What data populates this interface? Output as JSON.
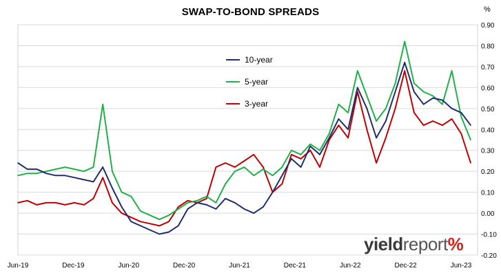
{
  "chart_data": {
    "type": "line",
    "title": "SWAP-TO-BOND SPREADS",
    "unit_label": "%",
    "x_tick_labels": [
      "Jun-19",
      "Dec-19",
      "Jun-20",
      "Dec-20",
      "Jun-21",
      "Dec-21",
      "Jun-22",
      "Dec-22",
      "Jun-23"
    ],
    "y_tick_labels": [
      "-0.20",
      "-0.10",
      "0.00",
      "0.10",
      "0.20",
      "0.30",
      "0.40",
      "0.50",
      "0.60",
      "0.70",
      "0.80",
      "0.90"
    ],
    "ylim": [
      -0.2,
      0.9
    ],
    "y_axis_side": "right",
    "grid": {
      "horizontal": true,
      "vertical": false
    },
    "legend_position": "upper-left inside",
    "colors": {
      "10-year": "#1f2d6b",
      "5-year": "#1fb04a",
      "3-year": "#c00000"
    },
    "series": [
      {
        "name": "10-year",
        "dates": [
          "Jun-19",
          "Jul-19",
          "Aug-19",
          "Sep-19",
          "Oct-19",
          "Nov-19",
          "Dec-19",
          "Jan-20",
          "Feb-20",
          "Mar-20",
          "Apr-20",
          "May-20",
          "Jun-20",
          "Jul-20",
          "Aug-20",
          "Sep-20",
          "Oct-20",
          "Nov-20",
          "Dec-20",
          "Jan-21",
          "Feb-21",
          "Mar-21",
          "Apr-21",
          "May-21",
          "Jun-21",
          "Jul-21",
          "Aug-21",
          "Sep-21",
          "Oct-21",
          "Nov-21",
          "Dec-21",
          "Jan-22",
          "Feb-22",
          "Mar-22",
          "Apr-22",
          "May-22",
          "Jun-22",
          "Jul-22",
          "Aug-22",
          "Sep-22",
          "Oct-22",
          "Nov-22",
          "Dec-22",
          "Jan-23",
          "Feb-23",
          "Mar-23",
          "Apr-23",
          "May-23",
          "Jun-23"
        ],
        "values": [
          0.24,
          0.21,
          0.21,
          0.19,
          0.18,
          0.18,
          0.17,
          0.16,
          0.15,
          0.22,
          0.12,
          0.03,
          -0.04,
          -0.06,
          -0.08,
          -0.1,
          -0.09,
          -0.06,
          0.02,
          0.05,
          0.04,
          0.02,
          0.07,
          0.05,
          0.02,
          0.0,
          0.03,
          0.1,
          0.18,
          0.26,
          0.22,
          0.32,
          0.28,
          0.36,
          0.45,
          0.4,
          0.6,
          0.5,
          0.36,
          0.44,
          0.58,
          0.72,
          0.58,
          0.52,
          0.55,
          0.54,
          0.5,
          0.48,
          0.42
        ]
      },
      {
        "name": "5-year",
        "dates": [
          "Jun-19",
          "Jul-19",
          "Aug-19",
          "Sep-19",
          "Oct-19",
          "Nov-19",
          "Dec-19",
          "Jan-20",
          "Feb-20",
          "Mar-20",
          "Apr-20",
          "May-20",
          "Jun-20",
          "Jul-20",
          "Aug-20",
          "Sep-20",
          "Oct-20",
          "Nov-20",
          "Dec-20",
          "Jan-21",
          "Feb-21",
          "Mar-21",
          "Apr-21",
          "May-21",
          "Jun-21",
          "Jul-21",
          "Aug-21",
          "Sep-21",
          "Oct-21",
          "Nov-21",
          "Dec-21",
          "Jan-22",
          "Feb-22",
          "Mar-22",
          "Apr-22",
          "May-22",
          "Jun-22",
          "Jul-22",
          "Aug-22",
          "Sep-22",
          "Oct-22",
          "Nov-22",
          "Dec-22",
          "Jan-23",
          "Feb-23",
          "Mar-23",
          "Apr-23",
          "May-23",
          "Jun-23"
        ],
        "values": [
          0.18,
          0.19,
          0.19,
          0.2,
          0.21,
          0.22,
          0.21,
          0.2,
          0.22,
          0.52,
          0.2,
          0.1,
          0.08,
          0.01,
          -0.01,
          -0.03,
          -0.01,
          0.02,
          0.05,
          0.06,
          0.08,
          0.05,
          0.14,
          0.2,
          0.22,
          0.18,
          0.21,
          0.18,
          0.22,
          0.3,
          0.28,
          0.33,
          0.3,
          0.38,
          0.52,
          0.48,
          0.68,
          0.56,
          0.44,
          0.5,
          0.62,
          0.82,
          0.62,
          0.58,
          0.56,
          0.52,
          0.68,
          0.46,
          0.35
        ]
      },
      {
        "name": "3-year",
        "dates": [
          "Jun-19",
          "Jul-19",
          "Aug-19",
          "Sep-19",
          "Oct-19",
          "Nov-19",
          "Dec-19",
          "Jan-20",
          "Feb-20",
          "Mar-20",
          "Apr-20",
          "May-20",
          "Jun-20",
          "Jul-20",
          "Aug-20",
          "Sep-20",
          "Oct-20",
          "Nov-20",
          "Dec-20",
          "Jan-21",
          "Feb-21",
          "Mar-21",
          "Apr-21",
          "May-21",
          "Jun-21",
          "Jul-21",
          "Aug-21",
          "Sep-21",
          "Oct-21",
          "Nov-21",
          "Dec-21",
          "Jan-22",
          "Feb-22",
          "Mar-22",
          "Apr-22",
          "May-22",
          "Jun-22",
          "Jul-22",
          "Aug-22",
          "Sep-22",
          "Oct-22",
          "Nov-22",
          "Dec-22",
          "Jan-23",
          "Feb-23",
          "Mar-23",
          "Apr-23",
          "May-23",
          "Jun-23"
        ],
        "values": [
          0.05,
          0.06,
          0.04,
          0.05,
          0.05,
          0.04,
          0.05,
          0.04,
          0.07,
          0.17,
          0.05,
          0.0,
          -0.02,
          -0.04,
          -0.05,
          -0.06,
          -0.04,
          0.03,
          0.06,
          0.05,
          0.07,
          0.22,
          0.24,
          0.22,
          0.25,
          0.28,
          0.22,
          0.1,
          0.14,
          0.28,
          0.26,
          0.3,
          0.22,
          0.35,
          0.42,
          0.36,
          0.58,
          0.4,
          0.24,
          0.36,
          0.5,
          0.68,
          0.48,
          0.42,
          0.44,
          0.42,
          0.45,
          0.38,
          0.24
        ]
      }
    ]
  },
  "logo": {
    "part1": "yield",
    "part2": "report",
    "part3": "%"
  }
}
